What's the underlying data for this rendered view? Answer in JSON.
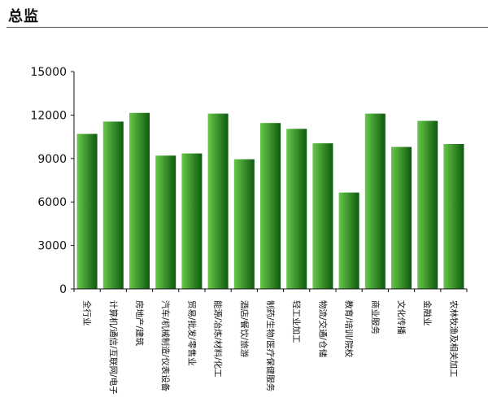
{
  "page": {
    "title": "总监"
  },
  "colors": {
    "bar_light": "#66c84a",
    "bar_dark": "#0d5a0d",
    "axis": "#111111"
  },
  "chart_data": {
    "type": "bar",
    "title": "",
    "xlabel": "",
    "ylabel": "",
    "ylim": [
      0,
      15000
    ],
    "yticks": [
      0,
      3000,
      6000,
      9000,
      12000,
      15000
    ],
    "grid": false,
    "categories": [
      "全行业",
      "计算机/通信/互联网/电子",
      "房地产/建筑",
      "汽车/机械制造/仪表设备",
      "贸易/批发/零售业",
      "能源/冶炼/材料/化工",
      "酒店/餐饮/旅游",
      "制药/生物/医疗保健服务",
      "轻工业加工",
      "物流/交通/仓储",
      "教育/培训/院校",
      "商业服务",
      "文化传播",
      "金融业",
      "农林牧渔及相关加工"
    ],
    "values": [
      10700,
      11550,
      12150,
      9200,
      9350,
      12100,
      8950,
      11450,
      11050,
      10050,
      6650,
      12100,
      9800,
      11600,
      10000
    ]
  }
}
